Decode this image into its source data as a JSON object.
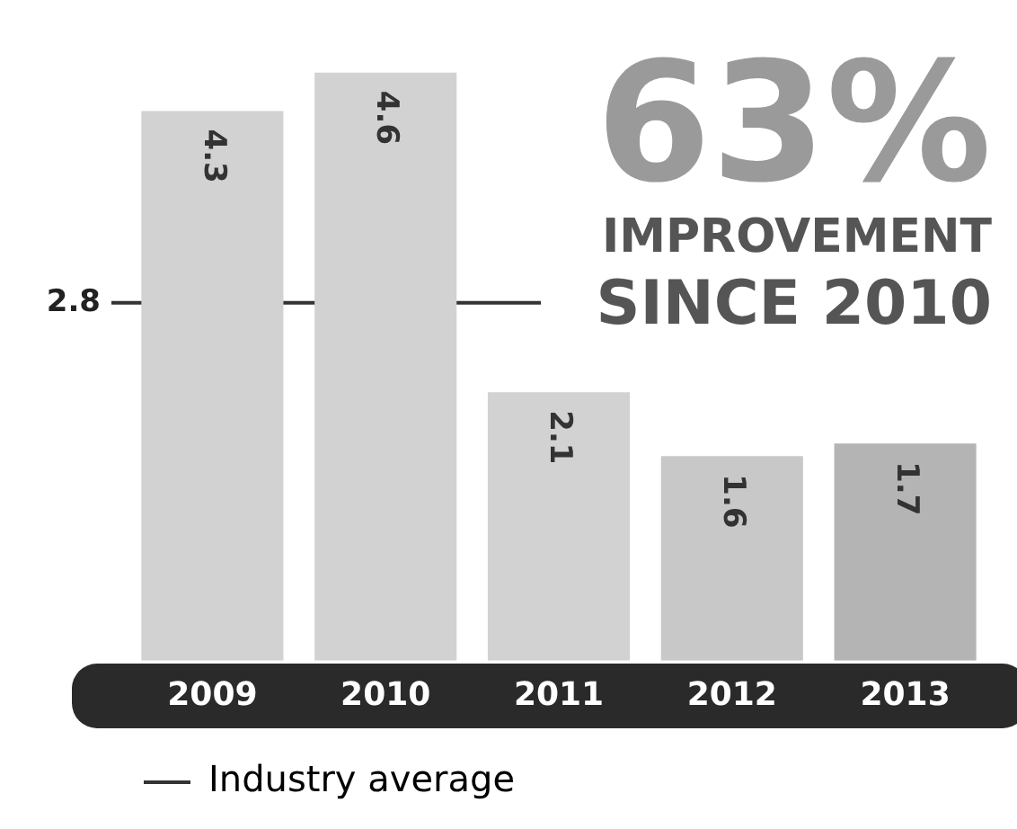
{
  "chart_data": {
    "type": "bar",
    "categories": [
      "2009",
      "2010",
      "2011",
      "2012",
      "2013"
    ],
    "values": [
      4.3,
      4.6,
      2.1,
      1.6,
      1.7
    ],
    "colors": [
      "#d2d2d2",
      "#d2d2d2",
      "#d2d2d2",
      "#c8c8c8",
      "#b4b4b4"
    ],
    "data_labels": true,
    "grid": false,
    "legend": "bottom left",
    "tick_labels": "x",
    "ref_lines": [
      {
        "axis": "y",
        "value": 2.8,
        "label": "Industry average",
        "color": "#333333"
      }
    ],
    "annotations": [
      "63%",
      "IMPROVEMENT",
      "SINCE 2010",
      "2.8"
    ]
  }
}
